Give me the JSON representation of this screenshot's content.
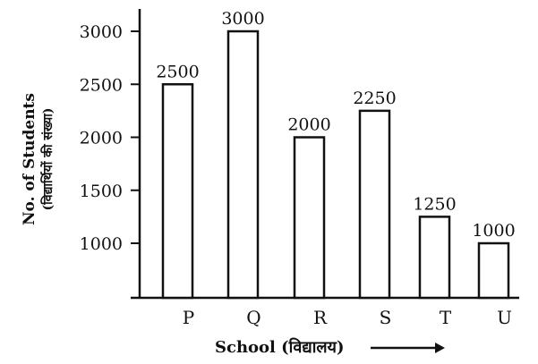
{
  "chart_data": {
    "type": "bar",
    "categories": [
      "P",
      "Q",
      "R",
      "S",
      "T",
      "U"
    ],
    "values": [
      2500,
      3000,
      2000,
      2250,
      1250,
      1000
    ],
    "data_labels": [
      "2500",
      "3000",
      "2000",
      "2250",
      "1250",
      "1000"
    ],
    "xlabel": "School (विद्यालय)",
    "ylabel": "No. of Students",
    "ylabel_secondary": "(विद्यार्थियों की संख्या)",
    "yticks": [
      1000,
      1500,
      2000,
      2500,
      3000
    ],
    "ylim": [
      500,
      3200
    ],
    "grid": false,
    "legend": "none",
    "colors": {
      "bar_fill": "#ffffff",
      "stroke": "#111111"
    }
  }
}
